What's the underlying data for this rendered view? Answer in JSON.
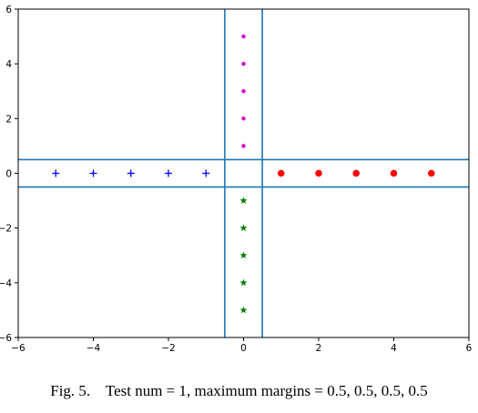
{
  "chart_data": {
    "type": "scatter",
    "xlim": [
      -6,
      6
    ],
    "ylim": [
      -6,
      6
    ],
    "x_ticks": [
      -6,
      -4,
      -2,
      0,
      2,
      4,
      6
    ],
    "y_ticks": [
      -6,
      -4,
      -2,
      0,
      2,
      4,
      6
    ],
    "x_tick_labels": [
      "−6",
      "−4",
      "−2",
      "0",
      "2",
      "4",
      "6"
    ],
    "y_tick_labels": [
      "−6",
      "−4",
      "−2",
      "0",
      "2",
      "4",
      "6"
    ],
    "grid": false,
    "series": [
      {
        "marker": "plus",
        "color": "#0000ff",
        "points": [
          [
            -5,
            0
          ],
          [
            -4,
            0
          ],
          [
            -3,
            0
          ],
          [
            -2,
            0
          ],
          [
            -1,
            0
          ]
        ]
      },
      {
        "marker": "circle",
        "color": "#ff0000",
        "points": [
          [
            1,
            0
          ],
          [
            2,
            0
          ],
          [
            3,
            0
          ],
          [
            4,
            0
          ],
          [
            5,
            0
          ]
        ]
      },
      {
        "marker": "dot",
        "color": "#cc00cc",
        "points": [
          [
            0,
            1
          ],
          [
            0,
            2
          ],
          [
            0,
            3
          ],
          [
            0,
            4
          ],
          [
            0,
            5
          ]
        ]
      },
      {
        "marker": "star",
        "color": "#008000",
        "points": [
          [
            0,
            -1
          ],
          [
            0,
            -2
          ],
          [
            0,
            -3
          ],
          [
            0,
            -4
          ],
          [
            0,
            -5
          ]
        ]
      }
    ],
    "vertical_lines": [
      -0.5,
      0.5
    ],
    "horizontal_lines": [
      -0.5,
      0.5
    ],
    "margin_line_color": "#1f77b4"
  },
  "caption": {
    "label": "Fig. 5.",
    "text": "Test num = 1, maximum margins = 0.5, 0.5, 0.5, 0.5"
  }
}
